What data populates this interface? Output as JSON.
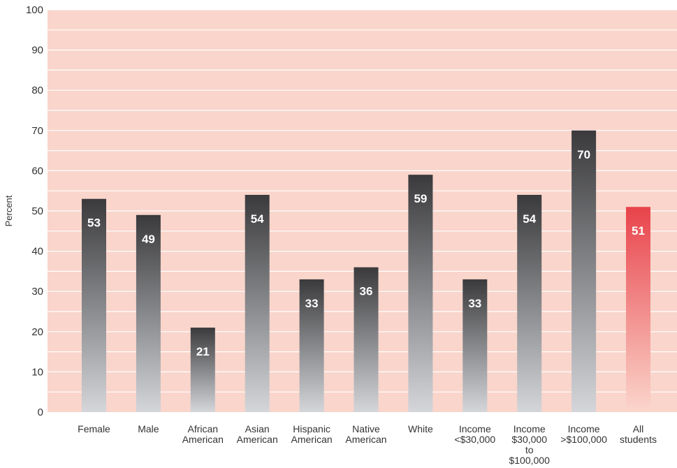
{
  "chart_data": {
    "type": "bar",
    "ylabel": "Percent",
    "ylim": [
      0,
      100
    ],
    "yticks": [
      0,
      10,
      20,
      30,
      40,
      50,
      60,
      70,
      80,
      90,
      100
    ],
    "grid": true,
    "categories": [
      [
        "Female"
      ],
      [
        "Male"
      ],
      [
        "African",
        "American"
      ],
      [
        "Asian",
        "American"
      ],
      [
        "Hispanic",
        "American"
      ],
      [
        "Native",
        "American"
      ],
      [
        "White"
      ],
      [
        "Income",
        "<$30,000"
      ],
      [
        "Income",
        "$30,000",
        "to",
        "$100,000"
      ],
      [
        "Income",
        ">$100,000"
      ],
      [
        "All",
        "students"
      ]
    ],
    "values": [
      53,
      49,
      21,
      54,
      33,
      36,
      59,
      33,
      54,
      70,
      51
    ],
    "highlight_index": 10,
    "colors": {
      "background": "#f9d5cb",
      "gridline": "#ffffff",
      "bar_top": "#3a3a3c",
      "bar_bottom": "#d4d6da",
      "highlight_top": "#e8434b",
      "highlight_bottom": "#fbd6cc",
      "value_label": "#ffffff"
    }
  }
}
